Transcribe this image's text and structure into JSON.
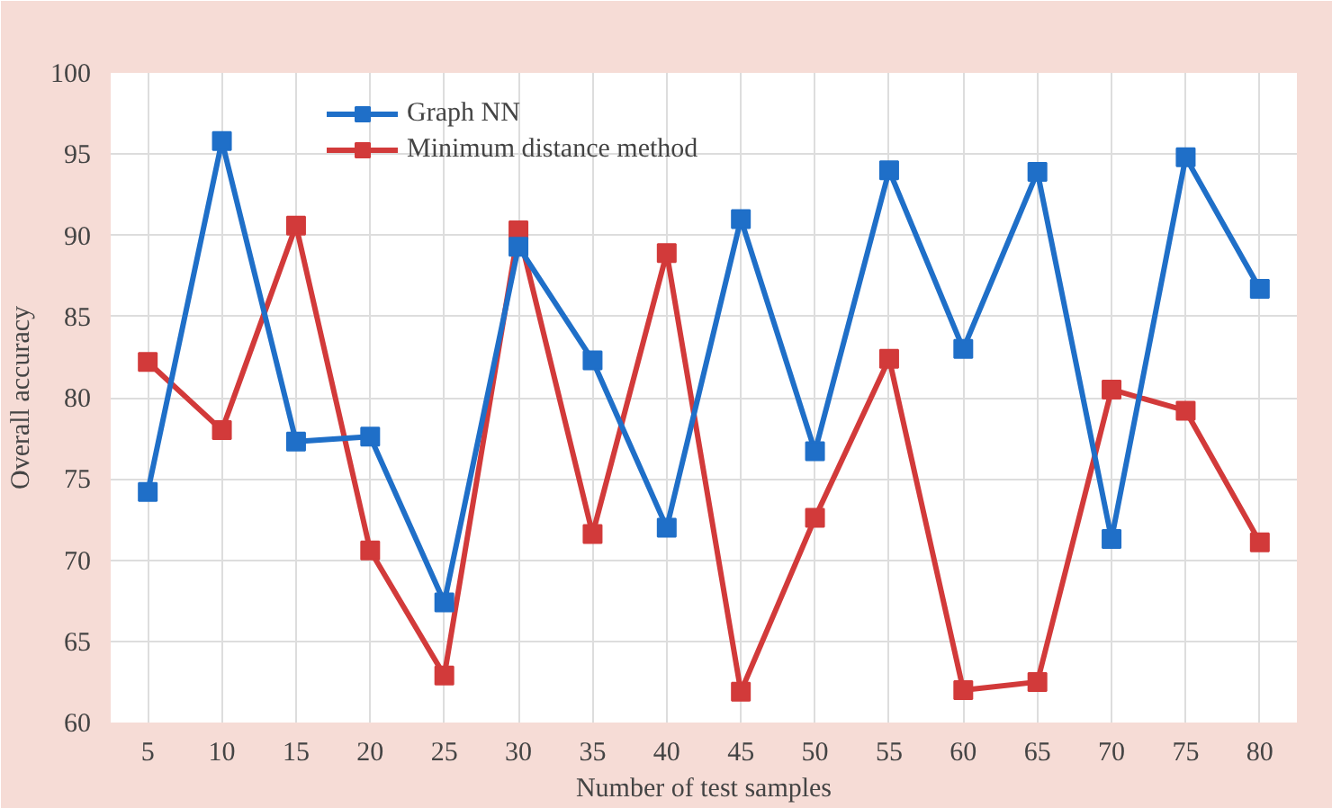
{
  "chart_data": {
    "type": "line",
    "xlabel": "Number of test samples",
    "ylabel": "Overall accuracy",
    "categories": [
      "5",
      "10",
      "15",
      "20",
      "25",
      "30",
      "35",
      "40",
      "45",
      "50",
      "55",
      "60",
      "65",
      "70",
      "75",
      "80"
    ],
    "series": [
      {
        "name": "Graph NN",
        "color": "#1f6fc8",
        "values": [
          74.2,
          95.8,
          77.3,
          77.6,
          67.4,
          89.3,
          82.3,
          72.0,
          91.0,
          76.7,
          94.0,
          83.0,
          93.9,
          71.3,
          94.8,
          86.7
        ]
      },
      {
        "name": "Minimum distance method",
        "color": "#d23a3a",
        "values": [
          82.2,
          78.0,
          90.6,
          70.6,
          62.9,
          90.3,
          71.6,
          88.9,
          61.9,
          72.6,
          82.4,
          62.0,
          62.5,
          80.5,
          79.2,
          71.1
        ]
      }
    ],
    "ylim": [
      60,
      100
    ],
    "yticks": [
      60,
      65,
      70,
      75,
      80,
      85,
      90,
      95,
      100
    ],
    "grid": true,
    "legend": "top left",
    "marker": "square",
    "line_style": "solid"
  }
}
